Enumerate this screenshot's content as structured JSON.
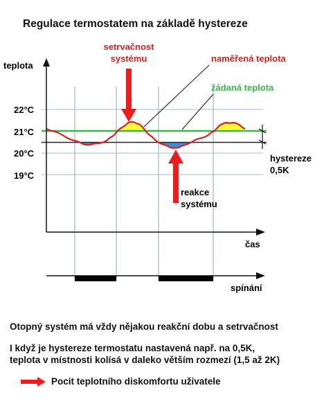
{
  "title": "Regulace termostatem na základě hystereze",
  "labels": {
    "y_axis": "teplota",
    "x_axis": "čas",
    "switching_axis": "spínání",
    "inertia_line1": "setrvačnost",
    "inertia_line2": "systému",
    "measured": "naměřená teplota",
    "setpoint": "žádaná teplota",
    "hysteresis_line1": "hystereze",
    "hysteresis_line2": "0,5K",
    "reaction_line1": "reakce",
    "reaction_line2": "systému"
  },
  "y_ticks": [
    "22°C",
    "21°C",
    "20°C",
    "19°C"
  ],
  "notes": {
    "line1": "Otopný systém má vždy nějakou reakční dobu a setrvačnost",
    "line2": "I když je hystereze termostatu nastavená např. na 0,5K,",
    "line3": "teplota v místnosti kolísá v daleko větším rozmezí (1,5 až 2K)"
  },
  "legend": {
    "label": "Pocit teplotního diskomfortu uživatele"
  },
  "colors": {
    "measured": "#e01e1e",
    "setpoint": "#3cb54a",
    "grid": "#a7b9d6",
    "overshoot": "#ffff33",
    "undershoot": "#3b8fd9",
    "arrow": "#ee1c1c",
    "switch_bar": "#000000"
  }
}
